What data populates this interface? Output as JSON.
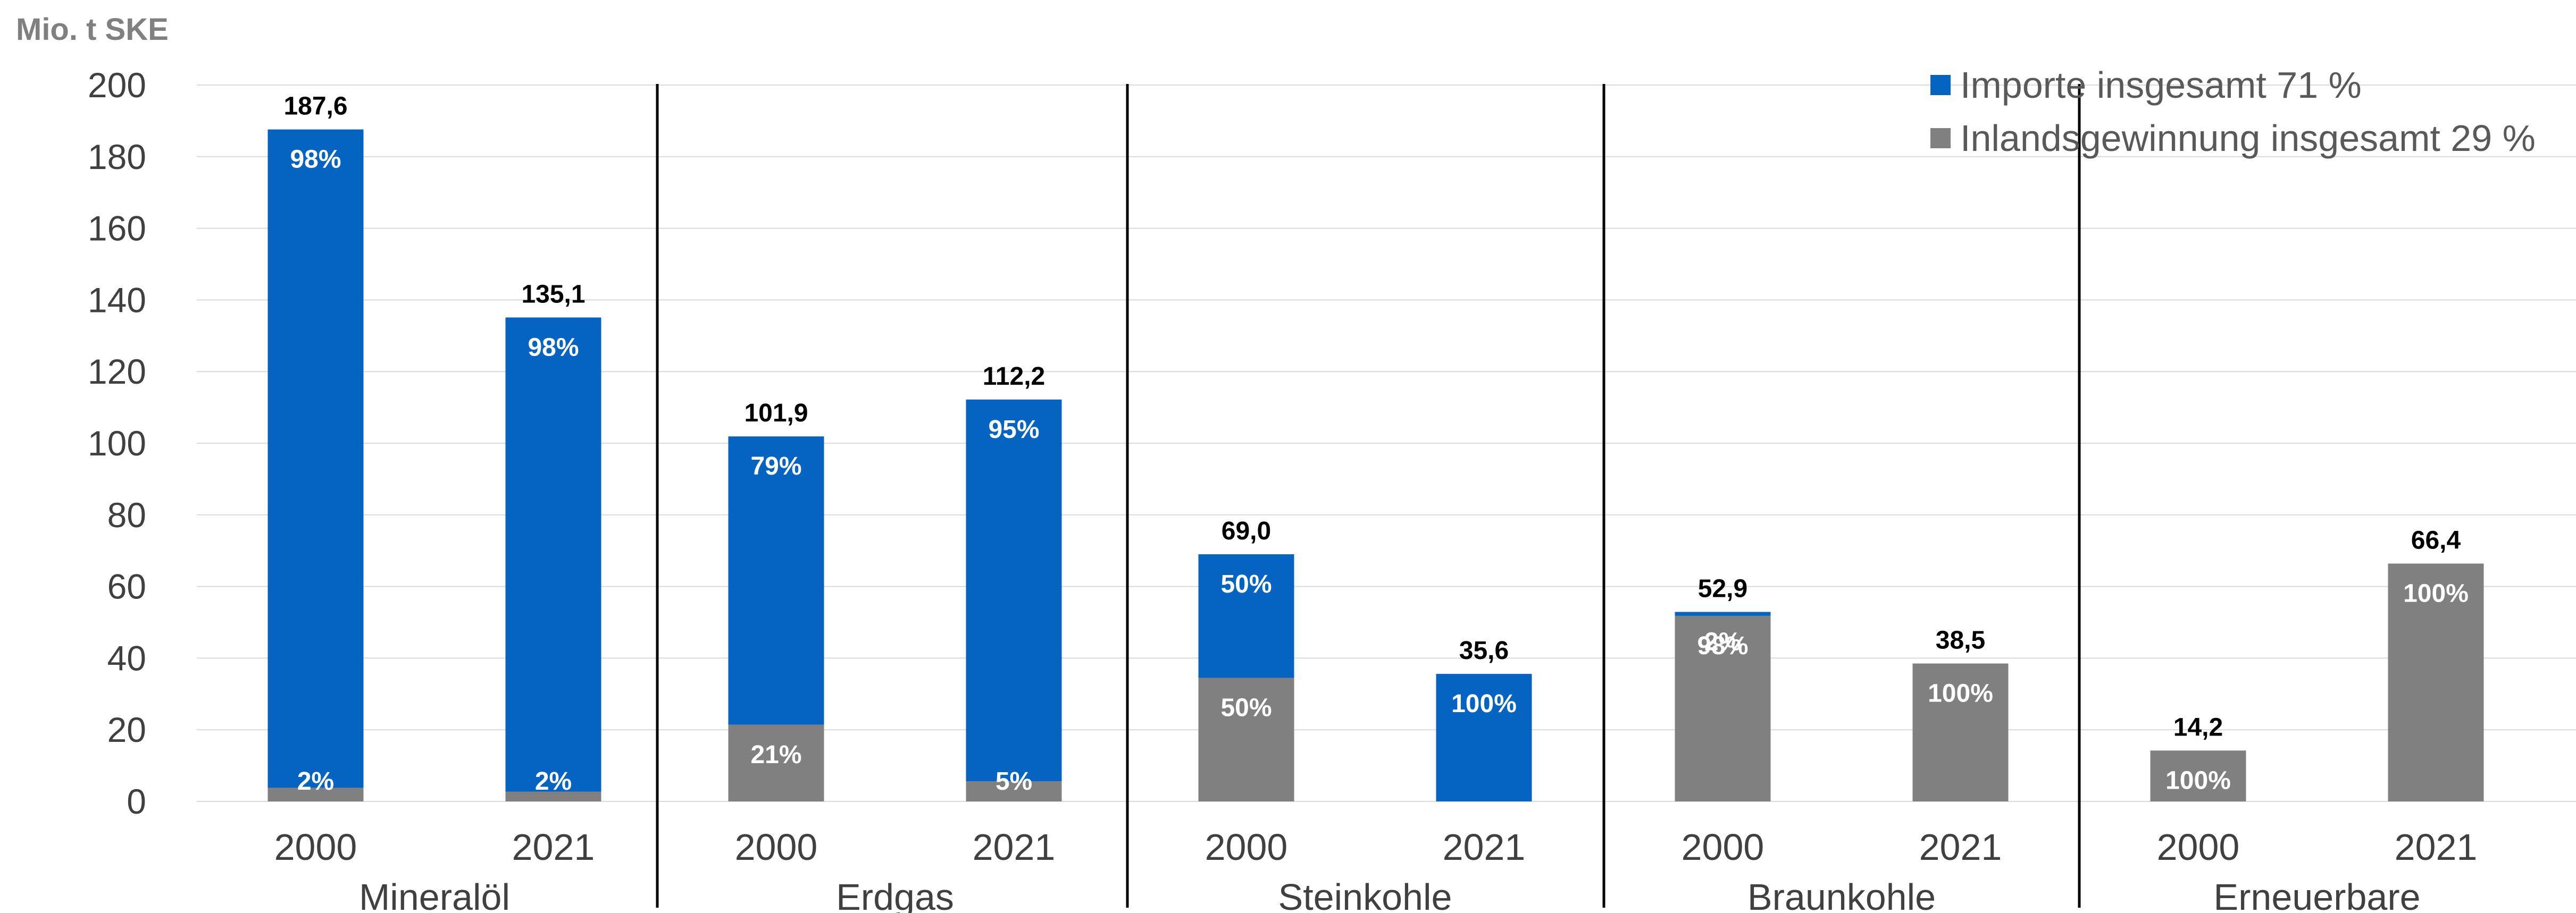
{
  "chart_data": {
    "type": "bar",
    "stacked": true,
    "unit_label": "Mio. t SKE",
    "ylim": [
      0,
      200
    ],
    "yticks": [
      0,
      20,
      40,
      60,
      80,
      100,
      120,
      140,
      160,
      180,
      200
    ],
    "grid": true,
    "legend_position": "top-right",
    "colors": {
      "imports": "#0563c1",
      "domestic": "#808080"
    },
    "series": [
      {
        "name": "Importe insgesamt 71 %",
        "key": "imports"
      },
      {
        "name": "Inlandsgewinnung insgesamt 29 %",
        "key": "domestic"
      }
    ],
    "groups": [
      {
        "name": "Mineralöl",
        "bars": [
          {
            "year": "2000",
            "total": 187.6,
            "total_label": "187,6",
            "imports": 183.8,
            "domestic": 3.8,
            "imports_label": "98%",
            "domestic_label": "2%"
          },
          {
            "year": "2021",
            "total": 135.1,
            "total_label": "135,1",
            "imports": 132.4,
            "domestic": 2.7,
            "imports_label": "98%",
            "domestic_label": "2%"
          }
        ]
      },
      {
        "name": "Erdgas",
        "bars": [
          {
            "year": "2000",
            "total": 101.9,
            "total_label": "101,9",
            "imports": 80.5,
            "domestic": 21.4,
            "imports_label": "79%",
            "domestic_label": "21%"
          },
          {
            "year": "2021",
            "total": 112.2,
            "total_label": "112,2",
            "imports": 106.6,
            "domestic": 5.6,
            "imports_label": "95%",
            "domestic_label": "5%"
          }
        ]
      },
      {
        "name": "Steinkohle",
        "bars": [
          {
            "year": "2000",
            "total": 69.0,
            "total_label": "69,0",
            "imports": 34.5,
            "domestic": 34.5,
            "imports_label": "50%",
            "domestic_label": "50%"
          },
          {
            "year": "2021",
            "total": 35.6,
            "total_label": "35,6",
            "imports": 35.6,
            "domestic": 0,
            "imports_label": "100%",
            "domestic_label": ""
          }
        ]
      },
      {
        "name": "Braunkohle",
        "bars": [
          {
            "year": "2000",
            "total": 52.9,
            "total_label": "52,9",
            "imports": 1.1,
            "domestic": 51.8,
            "imports_label": "2%",
            "domestic_label": "98%"
          },
          {
            "year": "2021",
            "total": 38.5,
            "total_label": "38,5",
            "imports": 0,
            "domestic": 38.5,
            "imports_label": "",
            "domestic_label": "100%"
          }
        ]
      },
      {
        "name": "Erneuerbare",
        "bars": [
          {
            "year": "2000",
            "total": 14.2,
            "total_label": "14,2",
            "imports": 0,
            "domestic": 14.2,
            "imports_label": "",
            "domestic_label": "100%"
          },
          {
            "year": "2021",
            "total": 66.4,
            "total_label": "66,4",
            "imports": 0,
            "domestic": 66.4,
            "imports_label": "",
            "domestic_label": "100%"
          }
        ]
      }
    ]
  }
}
